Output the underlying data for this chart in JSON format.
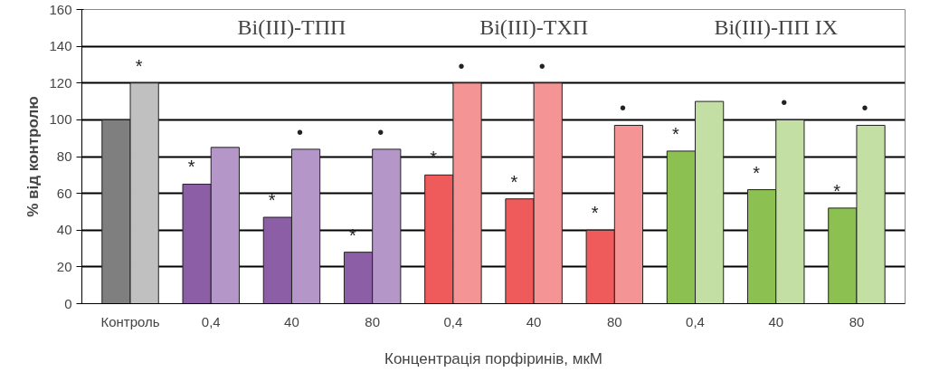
{
  "chart_data": {
    "type": "bar",
    "categories": [
      "Контроль",
      "0,4",
      "40",
      "80",
      "0,4",
      "40",
      "80",
      "0,4",
      "40",
      "80"
    ],
    "series": [
      {
        "colors": [
          "#7f7f7f",
          "#8b5ea6",
          "#8b5ea6",
          "#8b5ea6",
          "#ef5a5a",
          "#ef5a5a",
          "#ef5a5a",
          "#8cc152",
          "#8cc152",
          "#8cc152"
        ],
        "values": [
          100,
          65,
          47,
          28,
          70,
          57,
          40,
          83,
          62,
          52
        ],
        "value_labels": [
          null,
          "*",
          "*",
          "*",
          "*",
          "*",
          "*",
          "*",
          "*",
          "*"
        ]
      },
      {
        "colors": [
          "#c0c0c0",
          "#b497c8",
          "#b497c8",
          "#b497c8",
          "#f49494",
          "#f49494",
          "#f49494",
          "#c4dfa4",
          "#c4dfa4",
          "#c4dfa4"
        ],
        "values": [
          120,
          85,
          84,
          84,
          120,
          120,
          97,
          110,
          100,
          97
        ],
        "value_labels": [
          "*",
          null,
          "•",
          "•",
          "•",
          "•",
          "•",
          null,
          "•",
          "•"
        ]
      }
    ],
    "annotations": [
      "Bi(III)-ТПП",
      "Bi(III)-ТХП",
      "Bi(III)-ПП IX"
    ],
    "xlabel": "Концентрація порфіринів, мкМ",
    "ylabel": "% від контролю",
    "ylim": [
      0,
      160
    ],
    "yticks": [
      0,
      20,
      40,
      60,
      80,
      100,
      120,
      140,
      160
    ],
    "grid": "y"
  }
}
